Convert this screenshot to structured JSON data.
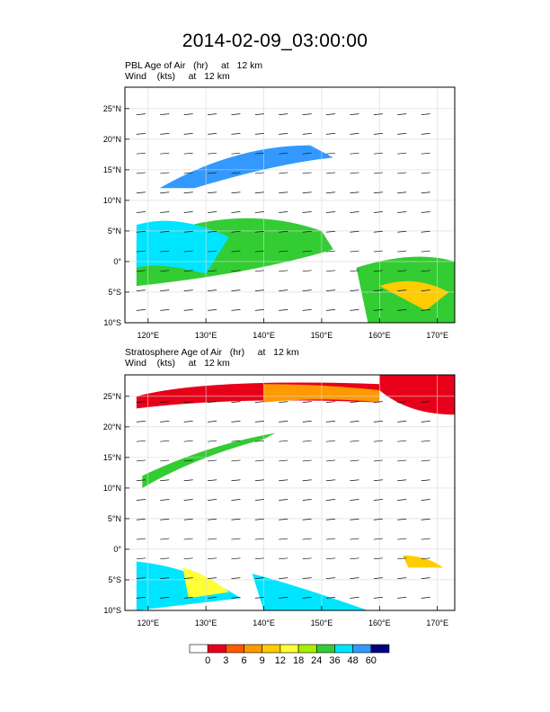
{
  "chart_data": {
    "title": "2014-02-09_03:00:00",
    "type": "heatmap",
    "panels": [
      {
        "id": "pbl",
        "field": "PBL Age of Air   (hr)     at   12 km",
        "overlay": "Wind    (kts)     at   12 km",
        "lon_range": [
          116,
          173
        ],
        "lat_range": [
          -10,
          28.5
        ]
      },
      {
        "id": "strat",
        "field": "Stratosphere Age of Air   (hr)     at   12 km",
        "overlay": "Wind    (kts)     at   12 km",
        "lon_range": [
          116,
          173
        ],
        "lat_range": [
          -10,
          28.5
        ]
      }
    ],
    "x_ticks": [
      {
        "value": 120,
        "label": "120°E"
      },
      {
        "value": 130,
        "label": "130°E"
      },
      {
        "value": 140,
        "label": "140°E"
      },
      {
        "value": 150,
        "label": "150°E"
      },
      {
        "value": 160,
        "label": "160°E"
      },
      {
        "value": 170,
        "label": "170°E"
      }
    ],
    "y_ticks": [
      {
        "value": 25,
        "label": "25°N"
      },
      {
        "value": 20,
        "label": "20°N"
      },
      {
        "value": 15,
        "label": "15°N"
      },
      {
        "value": 10,
        "label": "10°N"
      },
      {
        "value": 5,
        "label": "5°N"
      },
      {
        "value": 0,
        "label": "0°"
      },
      {
        "value": -5,
        "label": "5°S"
      },
      {
        "value": -10,
        "label": "10°S"
      }
    ],
    "colorbar": {
      "levels": [
        "0",
        "3",
        "6",
        "9",
        "12",
        "18",
        "24",
        "36",
        "48",
        "60"
      ],
      "colors": [
        "#ffffff",
        "#e8001a",
        "#ff5a00",
        "#ff9900",
        "#ffcc00",
        "#ffff33",
        "#a8f000",
        "#33cc33",
        "#00e5ff",
        "#3399ff",
        "#00007f"
      ]
    },
    "grid": true,
    "legend_position": "bottom"
  }
}
